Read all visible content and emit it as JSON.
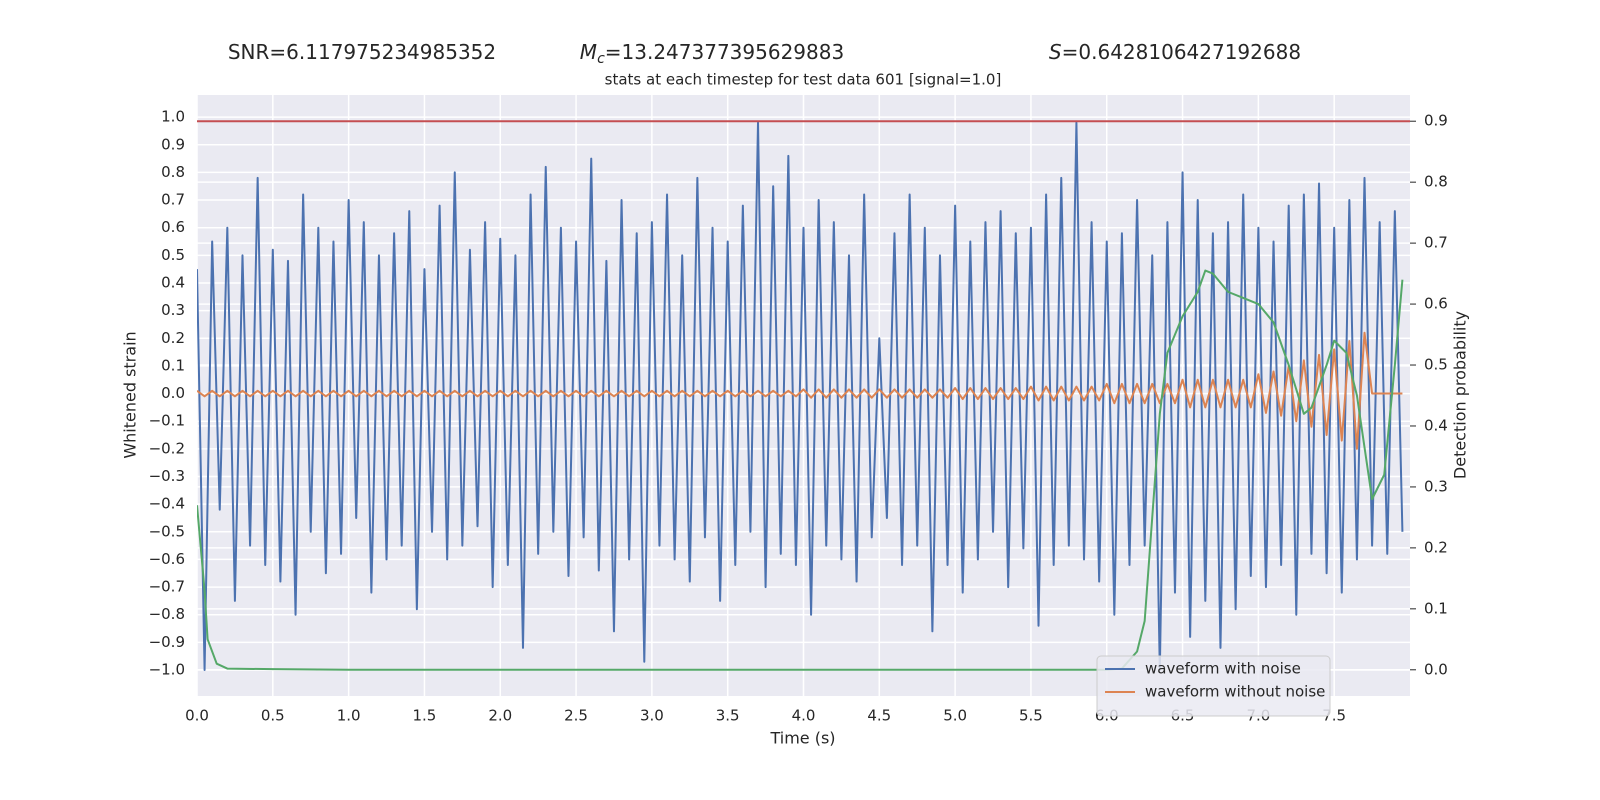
{
  "chart_data": {
    "type": "line",
    "stats": [
      {
        "text": "SNR=6.117975234985352"
      },
      {
        "symbol": "M",
        "subscript": "c",
        "text": "=13.247377395629883"
      },
      {
        "symbol": "S",
        "text": "=0.6428106427192688"
      }
    ],
    "title": "stats at each timestep for test data 601 [signal=1.0]",
    "xlabel": "Time (s)",
    "ylabel": "Whitened strain",
    "y2label": "Detection probability",
    "xlim": [
      0,
      8.0
    ],
    "ylim": [
      -1.094,
      1.08
    ],
    "y2lim": [
      -0.043,
      0.943
    ],
    "xticks": [
      {
        "value": 0,
        "label": "0.0"
      },
      {
        "value": 0.5,
        "label": "0.5"
      },
      {
        "value": 1,
        "label": "1.0"
      },
      {
        "value": 1.5,
        "label": "1.5"
      },
      {
        "value": 2,
        "label": "2.0"
      },
      {
        "value": 2.5,
        "label": "2.5"
      },
      {
        "value": 3,
        "label": "3.0"
      },
      {
        "value": 3.5,
        "label": "3.5"
      },
      {
        "value": 4,
        "label": "4.0"
      },
      {
        "value": 4.5,
        "label": "4.5"
      },
      {
        "value": 5,
        "label": "5.0"
      },
      {
        "value": 5.5,
        "label": "5.5"
      },
      {
        "value": 6,
        "label": "6.0"
      },
      {
        "value": 6.5,
        "label": "6.5"
      },
      {
        "value": 7,
        "label": "7.0"
      },
      {
        "value": 7.5,
        "label": "7.5"
      }
    ],
    "yticks": [
      {
        "value": -1.0,
        "label": "−1.0"
      },
      {
        "value": -0.9,
        "label": "−0.9"
      },
      {
        "value": -0.8,
        "label": "−0.8"
      },
      {
        "value": -0.7,
        "label": "−0.7"
      },
      {
        "value": -0.6,
        "label": "−0.6"
      },
      {
        "value": -0.5,
        "label": "−0.5"
      },
      {
        "value": -0.4,
        "label": "−0.4"
      },
      {
        "value": -0.3,
        "label": "−0.3"
      },
      {
        "value": -0.2,
        "label": "−0.2"
      },
      {
        "value": -0.1,
        "label": "−0.1"
      },
      {
        "value": 0,
        "label": "0.0"
      },
      {
        "value": 0.1,
        "label": "0.1"
      },
      {
        "value": 0.2,
        "label": "0.2"
      },
      {
        "value": 0.3,
        "label": "0.3"
      },
      {
        "value": 0.4,
        "label": "0.4"
      },
      {
        "value": 0.5,
        "label": "0.5"
      },
      {
        "value": 0.6,
        "label": "0.6"
      },
      {
        "value": 0.7,
        "label": "0.7"
      },
      {
        "value": 0.8,
        "label": "0.8"
      },
      {
        "value": 0.9,
        "label": "0.9"
      },
      {
        "value": 1.0,
        "label": "1.0"
      }
    ],
    "y2ticks": [
      {
        "value": 0,
        "label": "0.0"
      },
      {
        "value": 0.1,
        "label": "0.1"
      },
      {
        "value": 0.2,
        "label": "0.2"
      },
      {
        "value": 0.3,
        "label": "0.3"
      },
      {
        "value": 0.4,
        "label": "0.4"
      },
      {
        "value": 0.5,
        "label": "0.5"
      },
      {
        "value": 0.6,
        "label": "0.6"
      },
      {
        "value": 0.7,
        "label": "0.7"
      },
      {
        "value": 0.8,
        "label": "0.8"
      },
      {
        "value": 0.9,
        "label": "0.9"
      }
    ],
    "grid": true,
    "legend": "lower right",
    "hlines": [
      {
        "value": 0.9,
        "axis": "y2",
        "color": "#c44e52"
      }
    ],
    "x": [
      0,
      0.05,
      0.1,
      0.15,
      0.2,
      0.25,
      0.3,
      0.35,
      0.4,
      0.45,
      0.5,
      0.55,
      0.6,
      0.65,
      0.7,
      0.75,
      0.8,
      0.85,
      0.9,
      0.95,
      1,
      1.05,
      1.1,
      1.15,
      1.2,
      1.25,
      1.3,
      1.35,
      1.4,
      1.45,
      1.5,
      1.55,
      1.6,
      1.65,
      1.7,
      1.75,
      1.8,
      1.85,
      1.9,
      1.95,
      2,
      2.05,
      2.1,
      2.15,
      2.2,
      2.25,
      2.3,
      2.35,
      2.4,
      2.45,
      2.5,
      2.55,
      2.6,
      2.65,
      2.7,
      2.75,
      2.8,
      2.85,
      2.9,
      2.95,
      3,
      3.05,
      3.1,
      3.15,
      3.2,
      3.25,
      3.3,
      3.35,
      3.4,
      3.45,
      3.5,
      3.55,
      3.6,
      3.65,
      3.7,
      3.75,
      3.8,
      3.85,
      3.9,
      3.95,
      4,
      4.05,
      4.1,
      4.15,
      4.2,
      4.25,
      4.3,
      4.35,
      4.4,
      4.45,
      4.5,
      4.55,
      4.6,
      4.65,
      4.7,
      4.75,
      4.8,
      4.85,
      4.9,
      4.95,
      5,
      5.05,
      5.1,
      5.15,
      5.2,
      5.25,
      5.3,
      5.35,
      5.4,
      5.45,
      5.5,
      5.55,
      5.6,
      5.65,
      5.7,
      5.75,
      5.8,
      5.85,
      5.9,
      5.95,
      6,
      6.05,
      6.1,
      6.15,
      6.2,
      6.25,
      6.3,
      6.35,
      6.4,
      6.45,
      6.5,
      6.55,
      6.6,
      6.65,
      6.7,
      6.75,
      6.8,
      6.85,
      6.9,
      6.95,
      7,
      7.05,
      7.1,
      7.15,
      7.2,
      7.25,
      7.3,
      7.35,
      7.4,
      7.45,
      7.5,
      7.55,
      7.6,
      7.65,
      7.7,
      7.75,
      7.8,
      7.85,
      7.9,
      7.95
    ],
    "series": [
      {
        "name": "waveform with noise",
        "color": "#4c72b0",
        "values": [
          0.45,
          -1.0,
          0.55,
          -0.42,
          0.6,
          -0.75,
          0.5,
          -0.55,
          0.78,
          -0.62,
          0.52,
          -0.68,
          0.48,
          -0.8,
          0.72,
          -0.5,
          0.6,
          -0.65,
          0.55,
          -0.58,
          0.7,
          -0.45,
          0.62,
          -0.72,
          0.5,
          -0.6,
          0.58,
          -0.55,
          0.66,
          -0.78,
          0.45,
          -0.5,
          0.68,
          -0.6,
          0.8,
          -0.55,
          0.52,
          -0.48,
          0.62,
          -0.7,
          0.56,
          -0.62,
          0.5,
          -0.92,
          0.72,
          -0.58,
          0.82,
          -0.5,
          0.6,
          -0.66,
          0.55,
          -0.52,
          0.85,
          -0.64,
          0.48,
          -0.86,
          0.7,
          -0.6,
          0.58,
          -0.97,
          0.62,
          -0.55,
          0.72,
          -0.6,
          0.5,
          -0.68,
          0.78,
          -0.52,
          0.6,
          -0.75,
          0.55,
          -0.62,
          0.68,
          -0.5,
          0.98,
          -0.7,
          0.75,
          -0.58,
          0.86,
          -0.62,
          0.6,
          -0.8,
          0.7,
          -0.55,
          0.62,
          -0.6,
          0.5,
          -0.68,
          0.72,
          -0.52,
          0.2,
          -0.45,
          0.58,
          -0.62,
          0.72,
          -0.55,
          0.6,
          -0.86,
          0.5,
          -0.62,
          0.68,
          -0.72,
          0.55,
          -0.6,
          0.62,
          -0.5,
          0.66,
          -0.7,
          0.58,
          -0.56,
          0.6,
          -0.84,
          0.72,
          -0.62,
          0.78,
          -0.55,
          0.98,
          -0.6,
          0.62,
          -0.68,
          0.55,
          -0.8,
          0.58,
          -0.62,
          0.7,
          -0.55,
          0.5,
          -1.0,
          0.62,
          -0.72,
          0.8,
          -0.88,
          0.7,
          -0.75,
          0.58,
          -0.92,
          0.62,
          -0.78,
          0.72,
          -0.66,
          0.6,
          -0.7,
          0.55,
          -0.62,
          0.68,
          -0.8,
          0.72,
          -0.58,
          0.76,
          -0.65,
          0.6,
          -0.72,
          0.7,
          -0.6,
          0.78,
          -0.55,
          0.62,
          -0.58,
          0.66,
          -0.5
        ]
      },
      {
        "name": "waveform without noise",
        "color": "#dd8452",
        "values": [
          0.01,
          -0.01,
          0.01,
          -0.01,
          0.01,
          -0.01,
          0.01,
          -0.01,
          0.01,
          -0.01,
          0.01,
          -0.01,
          0.01,
          -0.01,
          0.01,
          -0.01,
          0.01,
          -0.01,
          0.01,
          -0.01,
          0.01,
          -0.01,
          0.01,
          -0.01,
          0.01,
          -0.01,
          0.01,
          -0.01,
          0.01,
          -0.01,
          0.01,
          -0.01,
          0.01,
          -0.01,
          0.01,
          -0.01,
          0.01,
          -0.01,
          0.01,
          -0.01,
          0.01,
          -0.01,
          0.01,
          -0.01,
          0.01,
          -0.01,
          0.01,
          -0.01,
          0.01,
          -0.01,
          0.01,
          -0.01,
          0.01,
          -0.01,
          0.01,
          -0.01,
          0.01,
          -0.01,
          0.01,
          -0.01,
          0.01,
          -0.01,
          0.01,
          -0.01,
          0.01,
          -0.01,
          0.01,
          -0.01,
          0.01,
          -0.01,
          0.01,
          -0.01,
          0.01,
          -0.01,
          0.01,
          -0.01,
          0.01,
          -0.01,
          0.01,
          -0.01,
          0.015,
          -0.015,
          0.015,
          -0.015,
          0.015,
          -0.015,
          0.015,
          -0.015,
          0.015,
          -0.015,
          0.015,
          -0.015,
          0.015,
          -0.015,
          0.015,
          -0.015,
          0.015,
          -0.015,
          0.015,
          -0.015,
          0.02,
          -0.02,
          0.02,
          -0.02,
          0.02,
          -0.02,
          0.02,
          -0.02,
          0.02,
          -0.02,
          0.025,
          -0.025,
          0.025,
          -0.025,
          0.025,
          -0.025,
          0.025,
          -0.025,
          0.025,
          -0.025,
          0.035,
          -0.035,
          0.035,
          -0.035,
          0.035,
          -0.035,
          0.035,
          -0.035,
          0.035,
          -0.035,
          0.05,
          -0.05,
          0.05,
          -0.05,
          0.05,
          -0.05,
          0.05,
          -0.05,
          0.05,
          -0.05,
          0.07,
          -0.07,
          0.08,
          -0.08,
          0.1,
          -0.1,
          0.12,
          -0.12,
          0.14,
          -0.15,
          0.16,
          -0.17,
          0.19,
          -0.2,
          0.22,
          0,
          0,
          0,
          0,
          0
        ]
      },
      {
        "color": "#55a868",
        "axis": "y2",
        "x": [
          0,
          0.05,
          0.07,
          0.13,
          0.2,
          0.5,
          1.0,
          2.0,
          3.0,
          4.0,
          5.0,
          6.0,
          6.1,
          6.2,
          6.25,
          6.3,
          6.35,
          6.4,
          6.5,
          6.6,
          6.65,
          6.7,
          6.8,
          6.9,
          7.0,
          7.1,
          7.2,
          7.3,
          7.35,
          7.45,
          7.5,
          7.58,
          7.65,
          7.75,
          7.83,
          7.9,
          7.95
        ],
        "values": [
          0.27,
          0.13,
          0.05,
          0.01,
          0.002,
          0.001,
          0,
          0,
          0,
          0,
          0,
          0,
          0.002,
          0.03,
          0.08,
          0.25,
          0.42,
          0.52,
          0.58,
          0.62,
          0.655,
          0.65,
          0.62,
          0.61,
          0.6,
          0.57,
          0.5,
          0.42,
          0.43,
          0.5,
          0.54,
          0.52,
          0.45,
          0.28,
          0.32,
          0.5,
          0.64
        ]
      }
    ]
  }
}
